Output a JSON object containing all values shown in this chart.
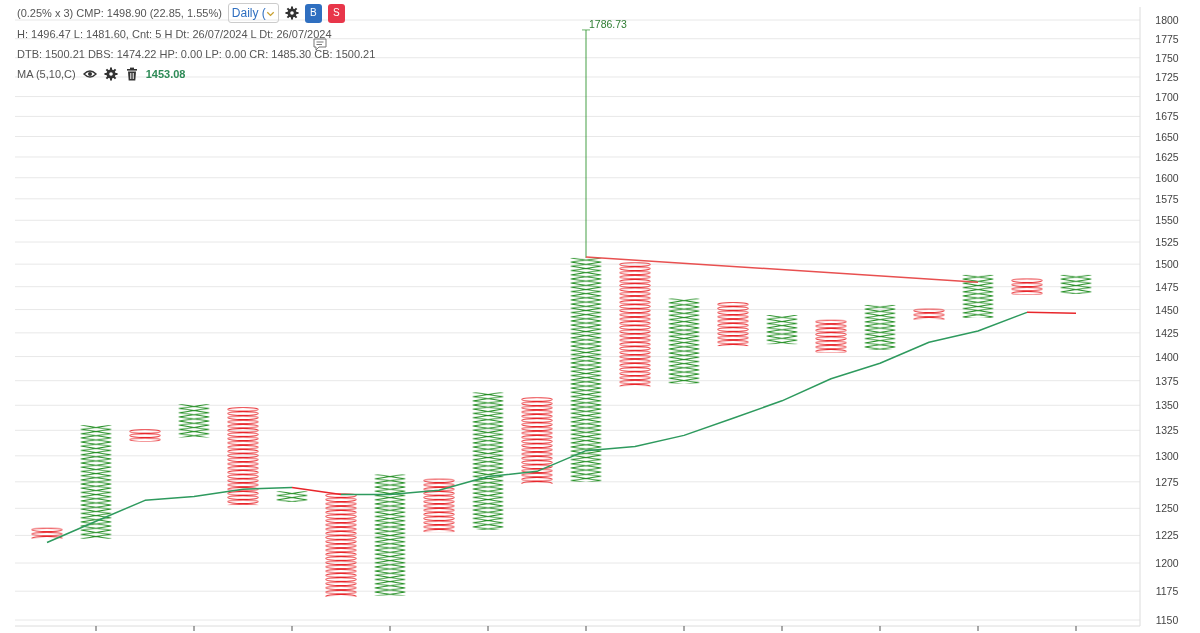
{
  "chart_data": {
    "type": "bar",
    "categories": [
      null,
      null,
      null,
      null,
      null,
      null,
      null,
      null,
      null,
      null,
      null,
      null,
      null,
      null,
      null,
      null,
      null,
      null,
      null,
      null,
      null,
      null
    ],
    "tick_labels": "y",
    "log": "y",
    "ylim": [
      1150,
      1800
    ],
    "yticks": [
      1150,
      1175,
      1200,
      1225,
      1250,
      1275,
      1300,
      1325,
      1350,
      1375,
      1400,
      1425,
      1450,
      1475,
      1500,
      1525,
      1550,
      1575,
      1600,
      1625,
      1650,
      1675,
      1700,
      1725,
      1750,
      1775,
      1800
    ],
    "grid": "y",
    "series": [
      {
        "colors": [
          "#e8262b",
          "#1e8c1e",
          "#e8262b",
          "#1e8c1e",
          "#e8262b",
          "#1e8c1e",
          "#e8262b",
          "#1e8c1e",
          "#e8262b",
          "#1e8c1e",
          "#e8262b",
          "#1e8c1e",
          "#e8262b",
          "#1e8c1e",
          "#e8262b",
          "#1e8c1e",
          "#e8262b",
          "#1e8c1e",
          "#e8262b",
          "#1e8c1e",
          "#e8262b",
          "#1e8c1e"
        ],
        "base": [
          1232,
          1222,
          1326,
          1318,
          1348,
          1256,
          1264,
          1171,
          1278,
          1230,
          1358,
          1275,
          1502,
          1372,
          1458,
          1413,
          1439,
          1407,
          1451,
          1441,
          1484,
          1467
        ],
        "values": [
          -10,
          108,
          -12,
          33,
          -95,
          10,
          -94,
          111,
          -50,
          133,
          -85,
          232,
          -133,
          90,
          -47,
          31,
          -35,
          48,
          -12,
          47,
          -18,
          21
        ],
        "errors": [
          null,
          null,
          null,
          null,
          null,
          null,
          null,
          null,
          null,
          null,
          null,
          [
            1507,
            1786.73
          ],
          null,
          null,
          null,
          null,
          null,
          null,
          null,
          null,
          null,
          null
        ]
      },
      {
        "type": "line",
        "color": "#2e9a5e",
        "values": [
          1218.5,
          1238,
          1257.5,
          1261,
          1268,
          1269.5,
          null,
          null,
          null,
          null,
          null,
          null,
          null,
          null,
          null,
          null,
          null,
          null,
          null,
          null,
          null,
          null
        ]
      },
      {
        "type": "line",
        "color": "#e8262b",
        "values": [
          null,
          null,
          null,
          null,
          null,
          1269.5,
          1263,
          null,
          null,
          null,
          null,
          null,
          null,
          null,
          null,
          null,
          null,
          null,
          null,
          null,
          null,
          null
        ]
      },
      {
        "type": "line",
        "color": "#2e9a5e",
        "values": [
          null,
          null,
          null,
          null,
          null,
          null,
          1263,
          1263,
          1267,
          1280,
          1285,
          1305,
          1309,
          1320,
          1337,
          1354.5,
          1377,
          1393,
          1415,
          1427,
          1447,
          null
        ]
      },
      {
        "type": "line",
        "color": "#e8262b",
        "values": [
          null,
          null,
          null,
          null,
          null,
          null,
          null,
          null,
          null,
          null,
          null,
          null,
          null,
          null,
          null,
          null,
          null,
          null,
          null,
          null,
          1447,
          1446
        ]
      },
      {
        "type": "line",
        "color": "#e85050",
        "values": [
          null,
          null,
          null,
          null,
          null,
          null,
          null,
          null,
          null,
          null,
          null,
          1508,
          null,
          null,
          null,
          null,
          null,
          null,
          null,
          1480,
          null,
          null
        ]
      }
    ],
    "annotations": [
      "(0.25% x 3) CMP: 1498.90 (22.85, 1.55%)",
      "Daily (",
      "B",
      "S",
      "H: 1496.47 L: 1481.60, Cnt: 5 H Dt: 26/07/2024 L Dt: 26/07/2024",
      "DTB: 1500.21 DBS: 1474.22 HP: 0.00 LP: 0.00 CR: 1485.30 CB: 1500.21",
      "MA (5,10,C)",
      "1453.08",
      "1786.73"
    ]
  }
}
